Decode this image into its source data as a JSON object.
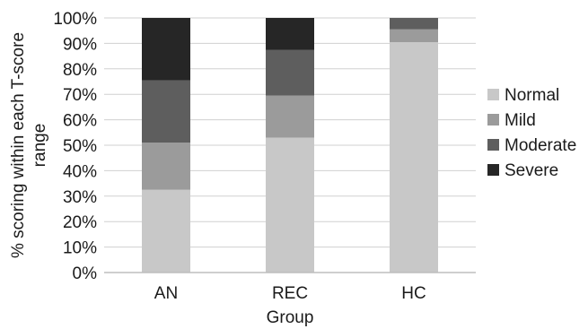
{
  "chart_data": {
    "type": "bar",
    "stacked": true,
    "stack_mode": "percent",
    "categories": [
      "AN",
      "REC",
      "HC"
    ],
    "series": [
      {
        "name": "Normal",
        "color": "#c8c8c8",
        "values": [
          32.5,
          53.0,
          90.5
        ]
      },
      {
        "name": "Mild",
        "color": "#9b9b9b",
        "values": [
          18.5,
          16.5,
          5.0
        ]
      },
      {
        "name": "Moderate",
        "color": "#5e5e5e",
        "values": [
          24.5,
          18.0,
          4.5
        ]
      },
      {
        "name": "Severe",
        "color": "#262626",
        "values": [
          24.5,
          12.5,
          0.0
        ]
      }
    ],
    "title": "",
    "xlabel": "Group",
    "ylabel_lines": [
      "% scoring within each T-score",
      "range"
    ],
    "ylim": [
      0,
      100
    ],
    "y_ticks": [
      "0%",
      "10%",
      "20%",
      "30%",
      "40%",
      "50%",
      "60%",
      "70%",
      "80%",
      "90%",
      "100%"
    ],
    "grid": true,
    "grid_color": "#d0d0d0",
    "legend_position": "right"
  }
}
